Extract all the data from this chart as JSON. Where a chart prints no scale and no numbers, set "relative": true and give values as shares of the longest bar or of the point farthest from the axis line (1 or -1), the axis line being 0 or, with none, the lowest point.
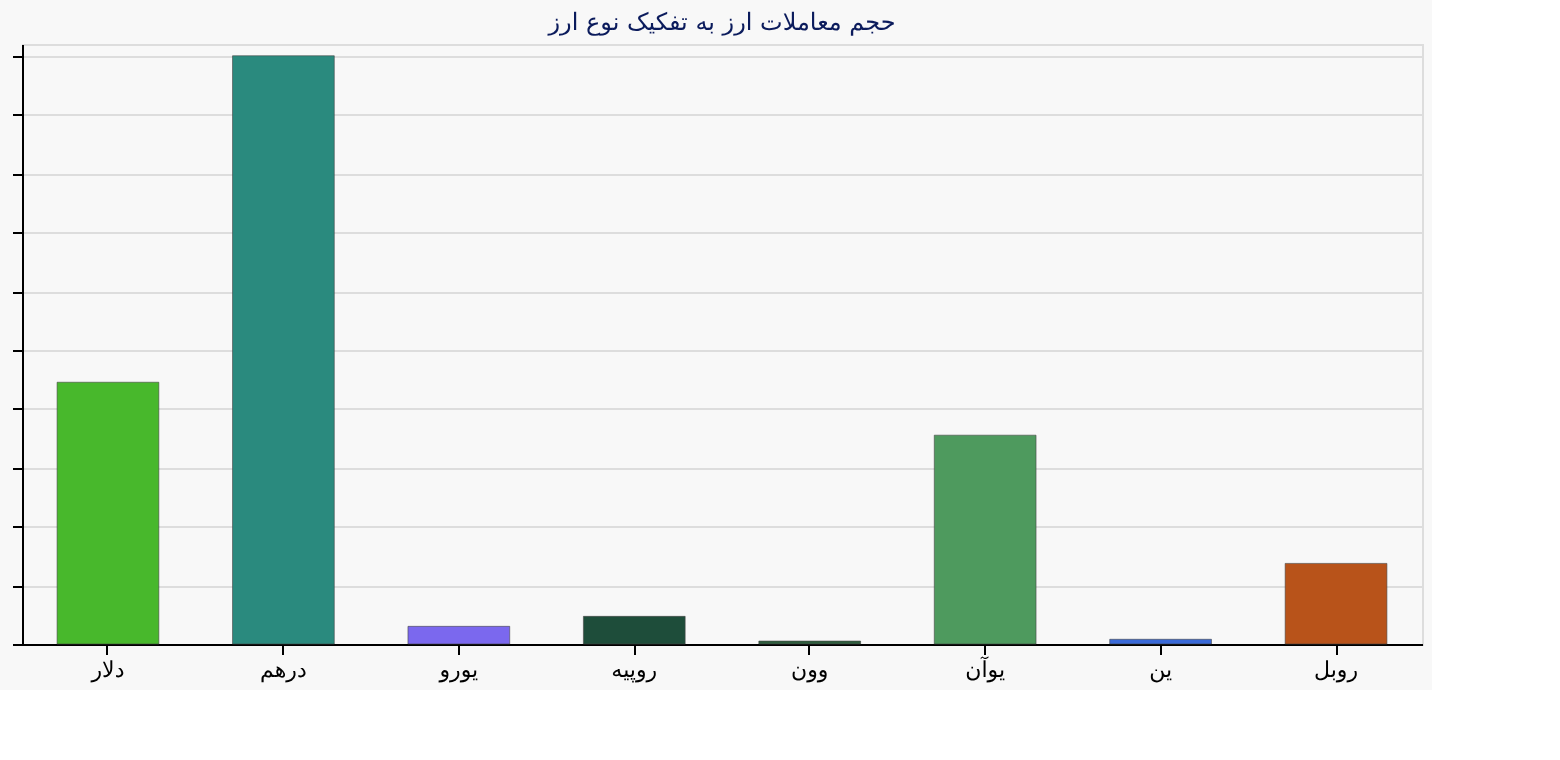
{
  "chart_data": {
    "type": "bar",
    "title": "حجم معاملات ارز به تفکیک نوع ارز",
    "relative": true,
    "grid": "y",
    "categories": [
      "دلار",
      "درهم",
      "یورو",
      "روپیه",
      "وون",
      "یوآن",
      "ین",
      "روبل"
    ],
    "values": [
      0.445,
      1,
      0.03,
      0.047,
      0.005,
      0.355,
      0.008,
      0.137
    ],
    "colors": [
      "#48b82c",
      "#2a8a7e",
      "#7b68ee",
      "#1e4d3a",
      "#2e5e3e",
      "#4e9a5e",
      "#3a6ad8",
      "#b8531a"
    ]
  }
}
